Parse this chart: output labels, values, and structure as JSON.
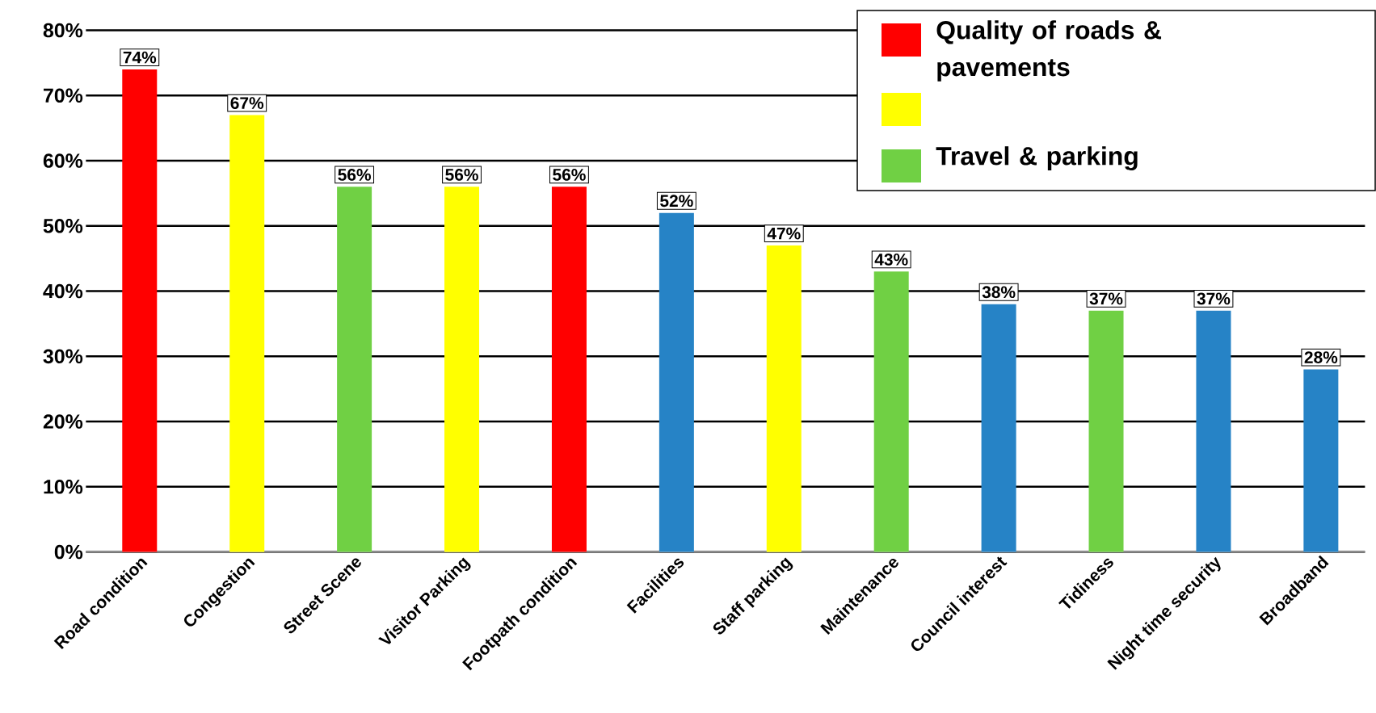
{
  "chart_data": {
    "type": "bar",
    "categories": [
      "Road condition",
      "Congestion",
      "Street Scene",
      "Visitor Parking",
      "Footpath condition",
      "Facilities",
      "Staff parking",
      "Maintenance",
      "Council interest",
      "Tidiness",
      "Night time security",
      "Broadband"
    ],
    "series": [
      {
        "name": "Quality of roads & pavements",
        "color": "#ff0000",
        "values": [
          74,
          null,
          null,
          null,
          56,
          null,
          null,
          null,
          null,
          null,
          null,
          null
        ],
        "value_labels": [
          "74%",
          null,
          null,
          null,
          "56%",
          null,
          null,
          null,
          null,
          null,
          null,
          null
        ]
      },
      {
        "color": "#ffff00",
        "values": [
          null,
          67,
          null,
          56,
          null,
          null,
          47,
          null,
          null,
          null,
          null,
          null
        ],
        "value_labels": [
          null,
          "67%",
          null,
          "56%",
          null,
          null,
          "47%",
          null,
          null,
          null,
          null,
          null
        ]
      },
      {
        "name": "Travel & parking",
        "color": "#70d044",
        "values": [
          null,
          null,
          56,
          null,
          null,
          null,
          null,
          43,
          null,
          37,
          null,
          null
        ],
        "value_labels": [
          null,
          null,
          "56%",
          null,
          null,
          null,
          null,
          "43%",
          null,
          "37%",
          null,
          null
        ]
      },
      {
        "color": "#2683c6",
        "values": [
          null,
          null,
          null,
          null,
          null,
          52,
          null,
          null,
          38,
          null,
          37,
          28
        ],
        "value_labels": [
          null,
          null,
          null,
          null,
          null,
          "52%",
          null,
          null,
          "38%",
          null,
          "37%",
          "28%"
        ]
      }
    ],
    "ylim": [
      0,
      80
    ],
    "yticks": [
      {
        "value": 0,
        "label": "0%"
      },
      {
        "value": 10,
        "label": "10%"
      },
      {
        "value": 20,
        "label": "20%"
      },
      {
        "value": 30,
        "label": "30%"
      },
      {
        "value": 40,
        "label": "40%"
      },
      {
        "value": 50,
        "label": "50%"
      },
      {
        "value": 60,
        "label": "60%"
      },
      {
        "value": 70,
        "label": "70%"
      },
      {
        "value": 80,
        "label": "80%"
      }
    ],
    "grid": "y",
    "legend": "top right"
  }
}
